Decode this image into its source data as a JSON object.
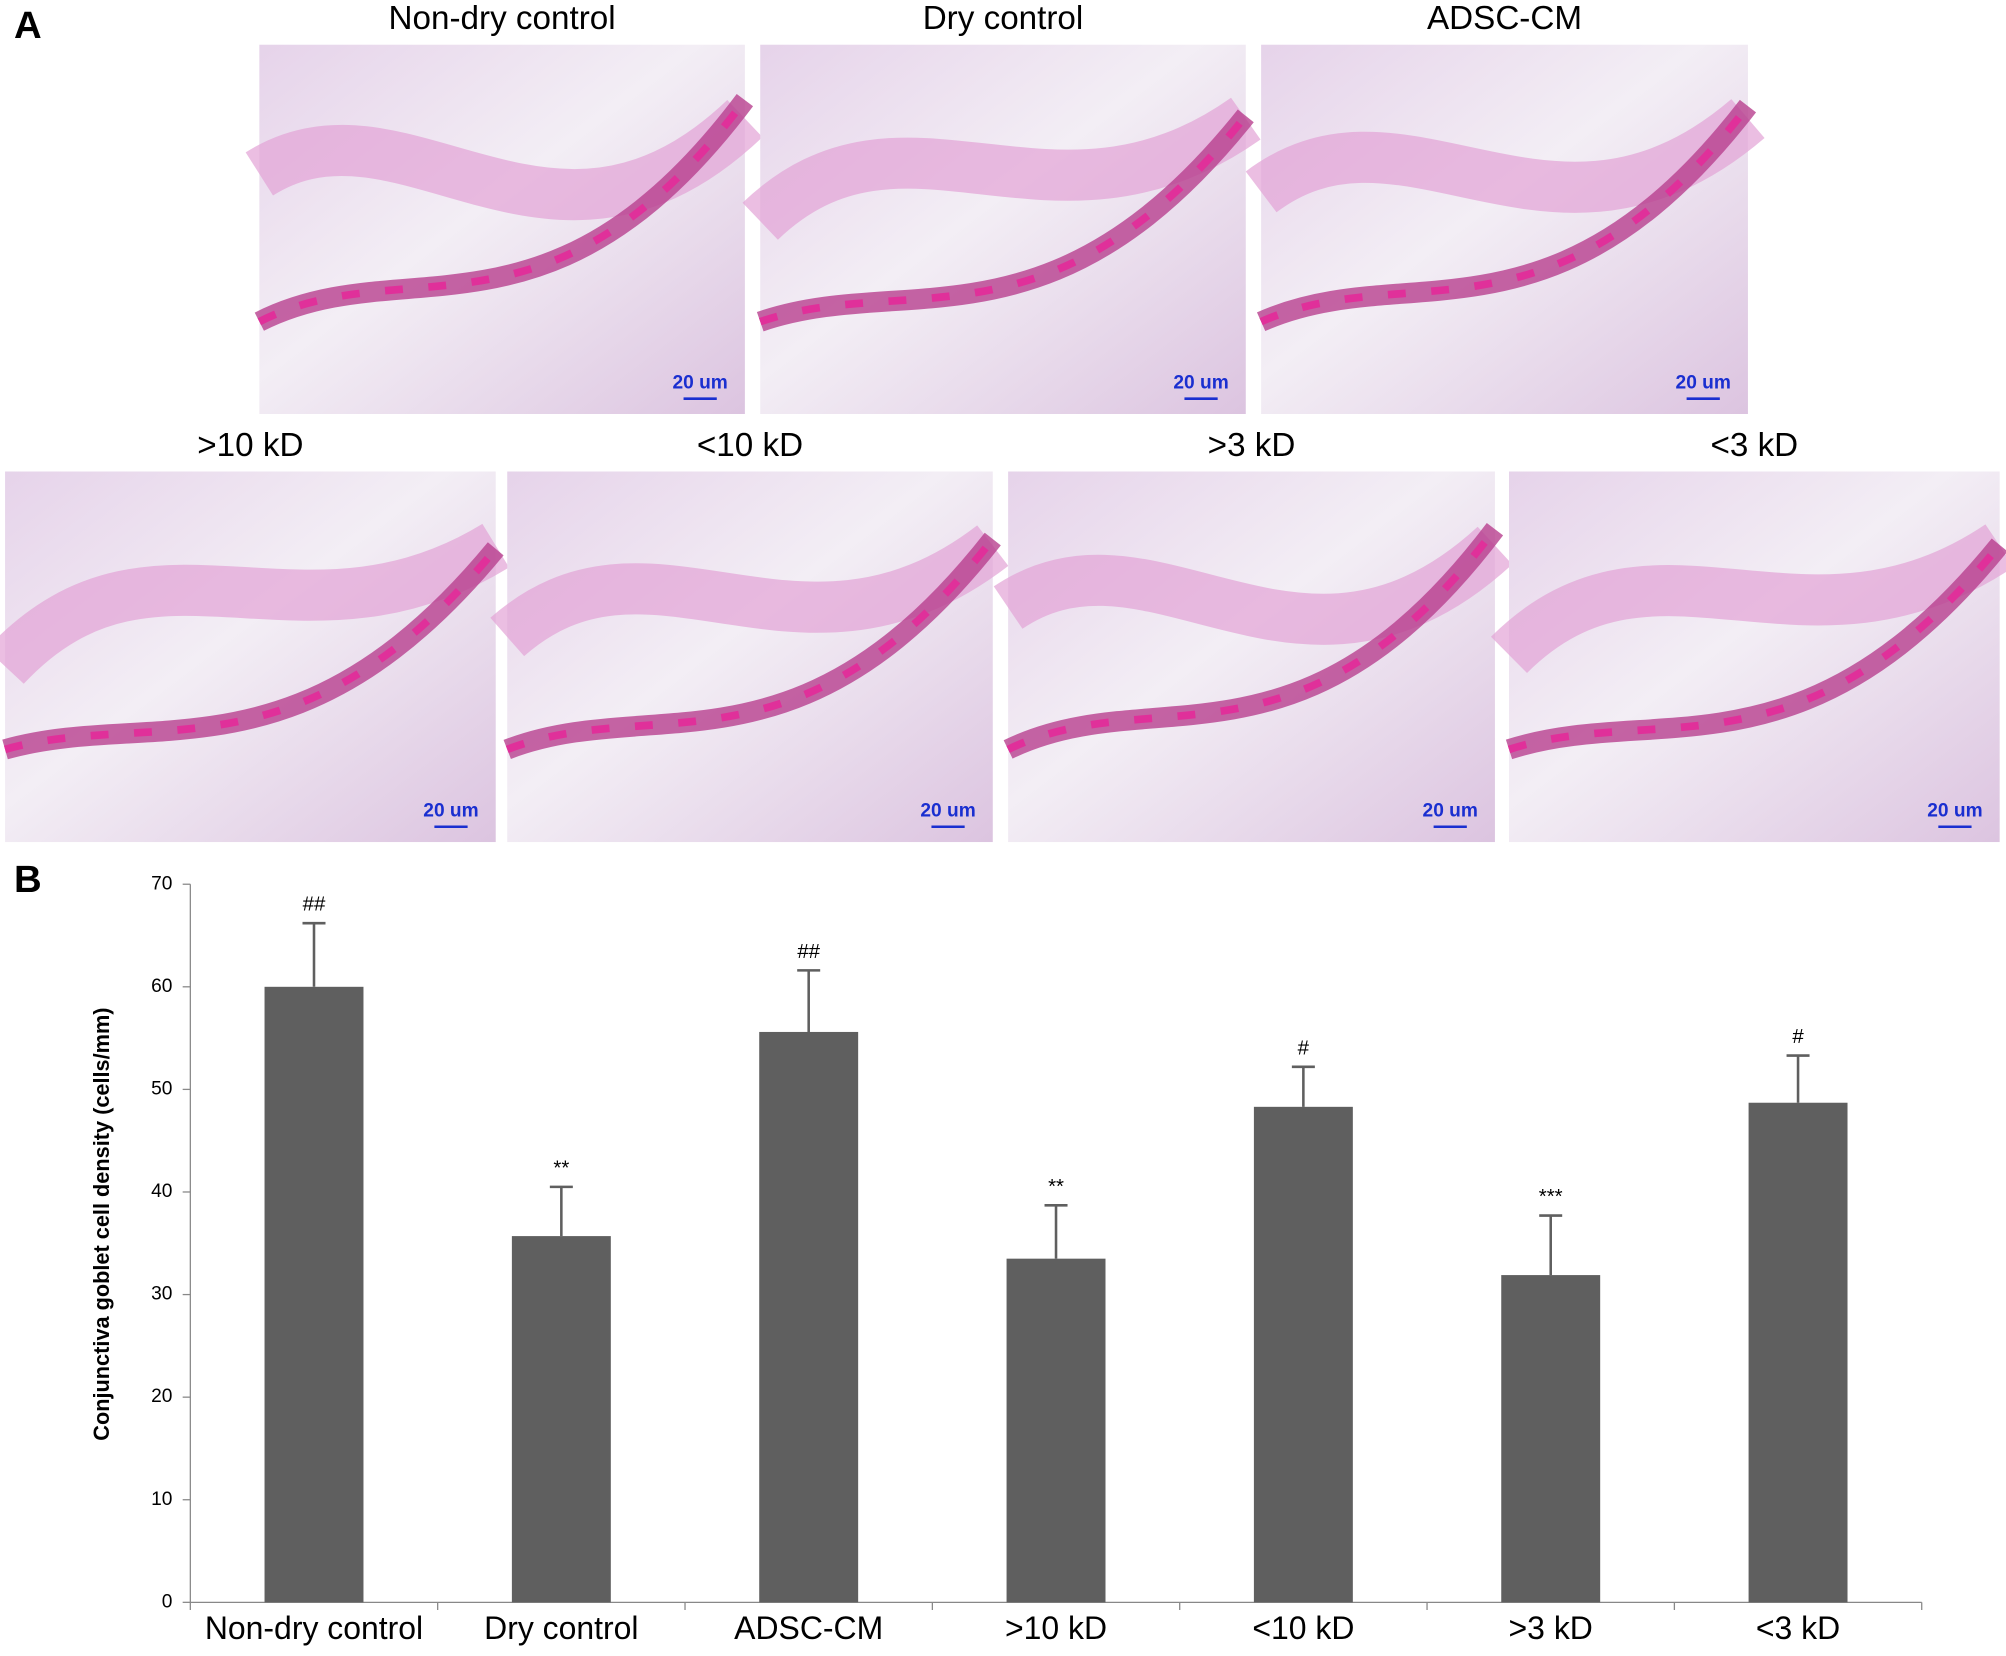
{
  "panel_a": {
    "label": "A",
    "images": [
      {
        "label": "Non-dry control",
        "scale_bar": "20 um"
      },
      {
        "label": "Dry control",
        "scale_bar": "20 um"
      },
      {
        "label": "ADSC-CM",
        "scale_bar": "20 um"
      },
      {
        "label": ">10 kD",
        "scale_bar": "20 um"
      },
      {
        "label": "<10 kD",
        "scale_bar": "20 um"
      },
      {
        "label": ">3 kD",
        "scale_bar": "20 um"
      },
      {
        "label": "<3 kD",
        "scale_bar": "20 um"
      }
    ]
  },
  "panel_b": {
    "label": "B"
  },
  "chart_data": {
    "type": "bar",
    "y_label": "Conjunctiva goblet cell density (cells/mm)",
    "categories": [
      "Non-dry control",
      "Dry control",
      "ADSC-CM",
      ">10 kD",
      "<10 kD",
      ">3 kD",
      "<3 kD"
    ],
    "values": [
      60,
      35.7,
      55.6,
      33.5,
      48.3,
      31.9,
      48.7
    ],
    "errors": [
      6.2,
      4.8,
      6,
      5.2,
      3.9,
      5.8,
      4.6
    ],
    "annotations": [
      "##",
      "**",
      "##",
      "**",
      "#",
      "***",
      "#"
    ],
    "color": "#5f5f5f",
    "ylim": [
      0,
      70
    ],
    "yticks": [
      0,
      10,
      20,
      30,
      40,
      50,
      60,
      70
    ],
    "grid": false
  }
}
